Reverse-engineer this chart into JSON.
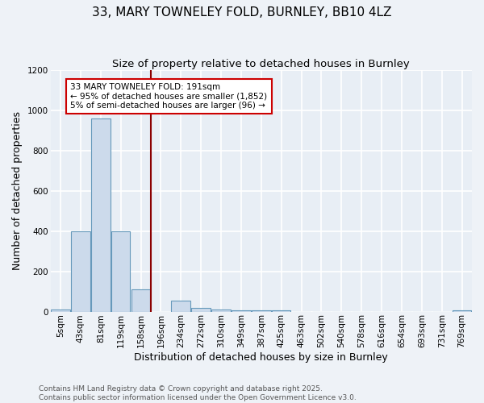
{
  "title1": "33, MARY TOWNELEY FOLD, BURNLEY, BB10 4LZ",
  "title2": "Size of property relative to detached houses in Burnley",
  "xlabel": "Distribution of detached houses by size in Burnley",
  "ylabel": "Number of detached properties",
  "categories": [
    "5sqm",
    "43sqm",
    "81sqm",
    "119sqm",
    "158sqm",
    "196sqm",
    "234sqm",
    "272sqm",
    "310sqm",
    "349sqm",
    "387sqm",
    "425sqm",
    "463sqm",
    "502sqm",
    "540sqm",
    "578sqm",
    "616sqm",
    "654sqm",
    "693sqm",
    "731sqm",
    "769sqm"
  ],
  "values": [
    10,
    400,
    960,
    400,
    110,
    0,
    55,
    20,
    10,
    5,
    5,
    5,
    0,
    0,
    0,
    0,
    0,
    0,
    0,
    0,
    5
  ],
  "bar_color": "#ccdaeb",
  "bar_edge_color": "#6699bb",
  "vline_position": 4.5,
  "vline_color": "#8b0000",
  "annotation_text": "33 MARY TOWNELEY FOLD: 191sqm\n← 95% of detached houses are smaller (1,852)\n5% of semi-detached houses are larger (96) →",
  "annotation_box_color": "#cc0000",
  "annotation_bg_color": "#ffffff",
  "ylim": [
    0,
    1200
  ],
  "yticks": [
    0,
    200,
    400,
    600,
    800,
    1000,
    1200
  ],
  "footer": "Contains HM Land Registry data © Crown copyright and database right 2025.\nContains public sector information licensed under the Open Government Licence v3.0.",
  "background_color": "#eef2f7",
  "plot_bg_color": "#e8eef5",
  "grid_color": "#ffffff",
  "title_fontsize": 11,
  "subtitle_fontsize": 9.5,
  "axis_label_fontsize": 9,
  "tick_fontsize": 7.5,
  "footer_fontsize": 6.5
}
